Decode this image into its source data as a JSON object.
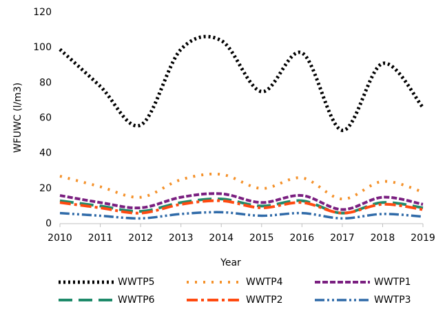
{
  "chart_data": {
    "type": "line",
    "x_label": "Year",
    "y_label": "WFUWC (l/m3)",
    "x": [
      2010,
      2011,
      2012,
      2013,
      2014,
      2015,
      2016,
      2017,
      2018,
      2019
    ],
    "xlim": [
      2010,
      2019
    ],
    "xticks": [
      2010,
      2011,
      2012,
      2013,
      2014,
      2015,
      2016,
      2017,
      2018,
      2019
    ],
    "ylim": [
      0,
      120
    ],
    "yticks": [
      0,
      20,
      40,
      60,
      80,
      100,
      120
    ],
    "smooth": true,
    "legend": "bottom",
    "series": [
      {
        "name": "WWTP5",
        "color": "#000000",
        "values": [
          99,
          78,
          56,
          99,
          104,
          75,
          97,
          53,
          91,
          66
        ]
      },
      {
        "name": "WWTP4",
        "color": "#f4912a",
        "values": [
          27,
          21,
          15,
          25,
          28,
          20,
          26,
          14,
          24,
          18
        ]
      },
      {
        "name": "WWTP1",
        "color": "#7a1f80",
        "values": [
          16,
          12,
          9,
          15,
          17,
          12,
          16,
          8,
          15,
          11
        ]
      },
      {
        "name": "WWTP6",
        "color": "#1e8a6a",
        "values": [
          13,
          10,
          7,
          12,
          14,
          10,
          13,
          6,
          12,
          9
        ]
      },
      {
        "name": "WWTP2",
        "color": "#ff4a10",
        "values": [
          12,
          9,
          6,
          11,
          13,
          9,
          12,
          6,
          11,
          8
        ]
      },
      {
        "name": "WWTP3",
        "color": "#2f6aa8",
        "values": [
          6,
          4.5,
          3,
          5.5,
          6.5,
          4.5,
          6,
          3,
          5.5,
          4
        ]
      }
    ]
  }
}
